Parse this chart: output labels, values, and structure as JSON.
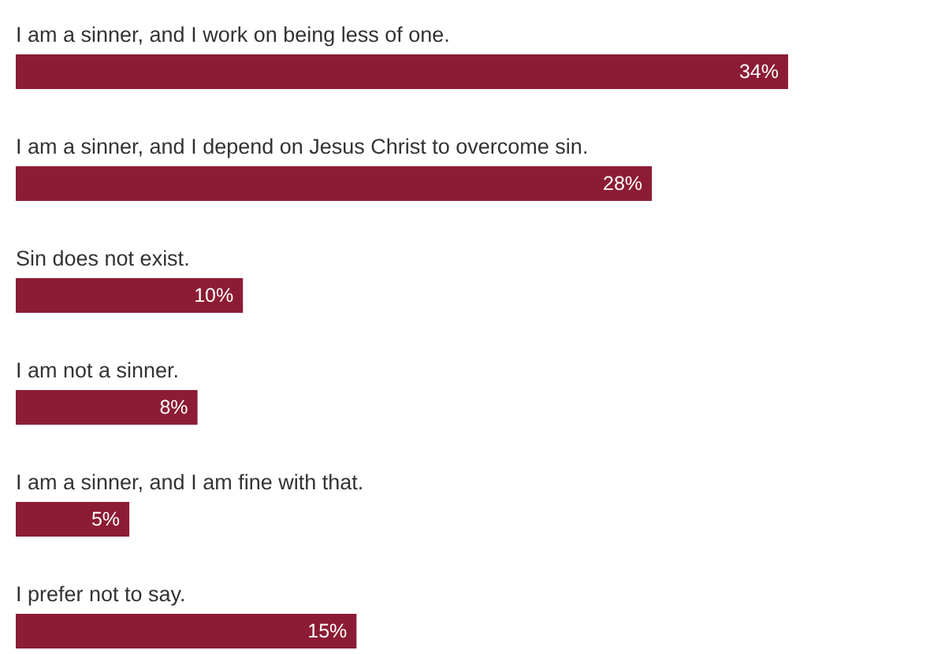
{
  "chart_data": {
    "type": "bar",
    "orientation": "horizontal",
    "categories": [
      "I am a sinner, and I work on being less of one.",
      "I am a sinner, and I depend on Jesus Christ to overcome sin.",
      "Sin does not exist.",
      "I am not a sinner.",
      "I am a sinner, and I am fine with that.",
      "I prefer not to say."
    ],
    "values": [
      34,
      28,
      10,
      8,
      5,
      15
    ],
    "value_labels": [
      "34%",
      "28%",
      "10%",
      "8%",
      "5%",
      "15%"
    ],
    "color": "#8c1c35"
  }
}
